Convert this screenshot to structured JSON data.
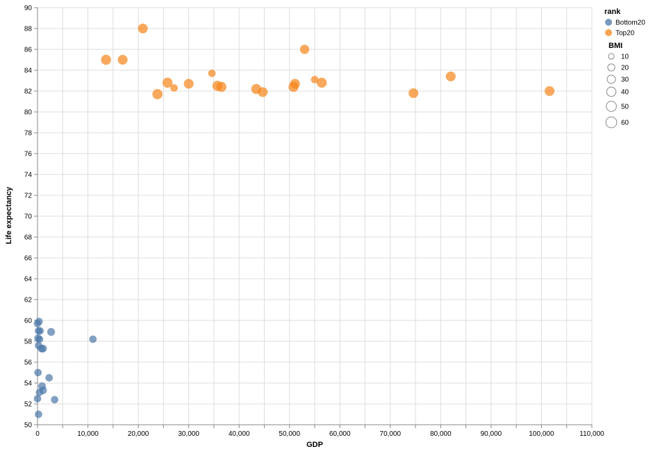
{
  "chart_data": {
    "type": "scatter",
    "xlabel": "GDP",
    "ylabel": "Life expectancy",
    "xlim": [
      0,
      110000
    ],
    "ylim": [
      50,
      90
    ],
    "x_ticks": [
      0,
      10000,
      20000,
      30000,
      40000,
      50000,
      60000,
      70000,
      80000,
      90000,
      100000,
      110000
    ],
    "x_tick_labels": [
      "0",
      "10,000",
      "20,000",
      "30,000",
      "40,000",
      "50,000",
      "60,000",
      "70,000",
      "80,000",
      "90,000",
      "100,000",
      "110,000"
    ],
    "y_ticks": [
      50,
      52,
      54,
      56,
      58,
      60,
      62,
      64,
      66,
      68,
      70,
      72,
      74,
      76,
      78,
      80,
      82,
      84,
      86,
      88,
      90
    ],
    "y_tick_labels": [
      "50",
      "52",
      "54",
      "56",
      "58",
      "60",
      "62",
      "64",
      "66",
      "68",
      "70",
      "72",
      "74",
      "76",
      "78",
      "80",
      "82",
      "84",
      "86",
      "88",
      "90"
    ],
    "grid": true,
    "legend": {
      "placement": "top-right",
      "color_title": "rank",
      "size_title": "BMI",
      "size_values": [
        10,
        20,
        30,
        40,
        50,
        60
      ],
      "size_labels": [
        "10",
        "20",
        "30",
        "40",
        "50",
        "60"
      ]
    },
    "series": [
      {
        "name": "Bottom20",
        "color": "#4c78a8",
        "points": [
          {
            "x": 0,
            "y": 59.7,
            "bmi": 22
          },
          {
            "x": 300,
            "y": 59.9,
            "bmi": 22
          },
          {
            "x": 200,
            "y": 59.0,
            "bmi": 22
          },
          {
            "x": 500,
            "y": 59.0,
            "bmi": 22
          },
          {
            "x": 2700,
            "y": 58.9,
            "bmi": 25
          },
          {
            "x": 100,
            "y": 58.3,
            "bmi": 22
          },
          {
            "x": 400,
            "y": 58.2,
            "bmi": 22
          },
          {
            "x": 11000,
            "y": 58.2,
            "bmi": 22
          },
          {
            "x": 200,
            "y": 57.6,
            "bmi": 22
          },
          {
            "x": 800,
            "y": 57.3,
            "bmi": 24
          },
          {
            "x": 1100,
            "y": 57.3,
            "bmi": 24
          },
          {
            "x": 100,
            "y": 55.0,
            "bmi": 22
          },
          {
            "x": 2300,
            "y": 54.5,
            "bmi": 22
          },
          {
            "x": 900,
            "y": 53.7,
            "bmi": 24
          },
          {
            "x": 1100,
            "y": 53.3,
            "bmi": 24
          },
          {
            "x": 400,
            "y": 53.1,
            "bmi": 22
          },
          {
            "x": 3400,
            "y": 52.4,
            "bmi": 22
          },
          {
            "x": 0,
            "y": 52.5,
            "bmi": 22
          },
          {
            "x": 200,
            "y": 51.0,
            "bmi": 22
          }
        ]
      },
      {
        "name": "Top20",
        "color": "#f58518",
        "points": [
          {
            "x": 20900,
            "y": 88.0,
            "bmi": 45
          },
          {
            "x": 53000,
            "y": 86.0,
            "bmi": 40
          },
          {
            "x": 13600,
            "y": 85.0,
            "bmi": 48
          },
          {
            "x": 16900,
            "y": 85.0,
            "bmi": 45
          },
          {
            "x": 34600,
            "y": 83.7,
            "bmi": 22
          },
          {
            "x": 82000,
            "y": 83.4,
            "bmi": 45
          },
          {
            "x": 55000,
            "y": 83.1,
            "bmi": 22
          },
          {
            "x": 25800,
            "y": 82.8,
            "bmi": 48
          },
          {
            "x": 30000,
            "y": 82.7,
            "bmi": 45
          },
          {
            "x": 56400,
            "y": 82.8,
            "bmi": 48
          },
          {
            "x": 51100,
            "y": 82.7,
            "bmi": 45
          },
          {
            "x": 35700,
            "y": 82.5,
            "bmi": 48
          },
          {
            "x": 36500,
            "y": 82.4,
            "bmi": 48
          },
          {
            "x": 50800,
            "y": 82.4,
            "bmi": 48
          },
          {
            "x": 27100,
            "y": 82.3,
            "bmi": 22
          },
          {
            "x": 43400,
            "y": 82.2,
            "bmi": 48
          },
          {
            "x": 101600,
            "y": 82.0,
            "bmi": 45
          },
          {
            "x": 44700,
            "y": 81.9,
            "bmi": 45
          },
          {
            "x": 74600,
            "y": 81.8,
            "bmi": 45
          },
          {
            "x": 23800,
            "y": 81.7,
            "bmi": 50
          }
        ]
      }
    ]
  }
}
